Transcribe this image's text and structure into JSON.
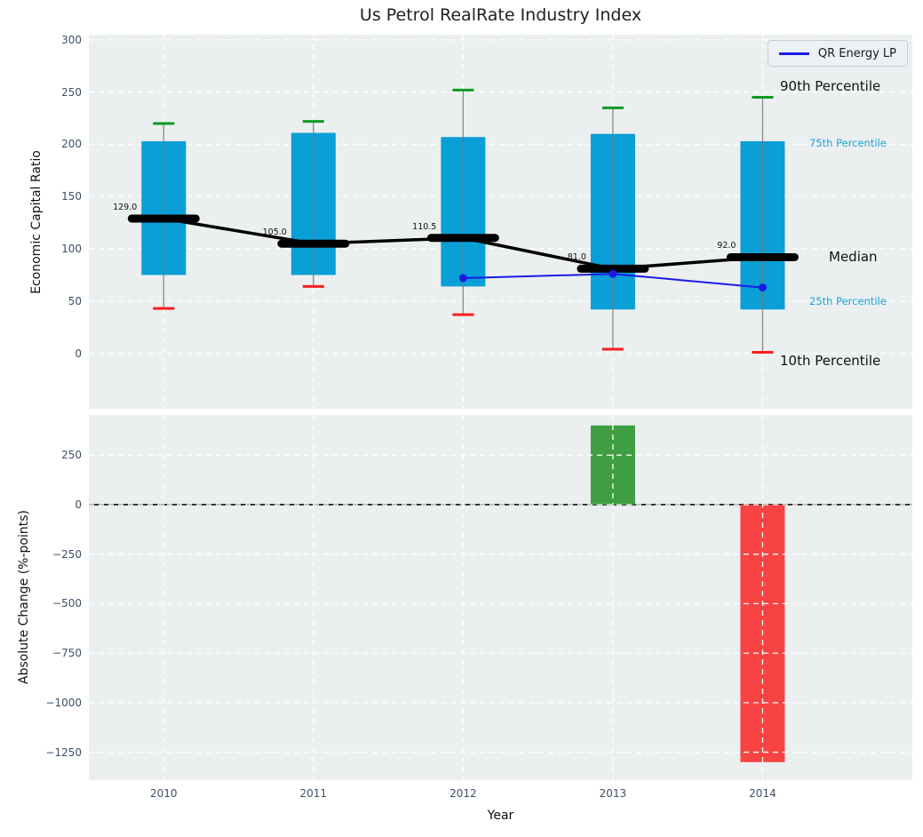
{
  "title": "Us Petrol RealRate Industry Index",
  "legend": {
    "label": "QR Energy LP"
  },
  "colors": {
    "axes_bg": "#ebeff0",
    "grid": "#ffffff",
    "tick": "#3d4f66",
    "box_fill": "#0a9fd6",
    "accent_label": "#17a2d4",
    "whisker": "#777777",
    "cap_high": "#0c9a26",
    "cap_low": "#f81e1e",
    "median": "#000000",
    "qr_line": "#1a1ae6",
    "bar_positive": "#3f9e42",
    "bar_negative": "#f84343",
    "zero_line": "#111111",
    "title_color": "#212121"
  },
  "chart_data": [
    {
      "type": "box-percentile",
      "title": "Us Petrol RealRate Industry Index",
      "ylabel": "Economic Capital Ratio",
      "categories": [
        "2010",
        "2011",
        "2012",
        "2013",
        "2014"
      ],
      "ylim": [
        -53,
        305
      ],
      "yticks": [
        300,
        250,
        200,
        150,
        100,
        50,
        0
      ],
      "ytick_labels": [
        "300",
        "250",
        "200",
        "150",
        "100",
        "50",
        "0"
      ],
      "grid": true,
      "legend_position": "upper right",
      "series": [
        {
          "name": "90th Percentile",
          "values": [
            220,
            222,
            252,
            235,
            245
          ]
        },
        {
          "name": "75th Percentile",
          "values": [
            203,
            211,
            207,
            210,
            203
          ]
        },
        {
          "name": "Median",
          "values": [
            129.0,
            105.0,
            110.5,
            81.0,
            92.0
          ]
        },
        {
          "name": "25th Percentile",
          "values": [
            75,
            75,
            64,
            42,
            42
          ]
        },
        {
          "name": "10th Percentile",
          "values": [
            43,
            64,
            37,
            4,
            1
          ]
        }
      ],
      "median_labels": [
        "129.0",
        "105.0",
        "110.5",
        "81.0",
        "92.0"
      ],
      "overlay_line": {
        "name": "QR Energy LP",
        "x_indices": [
          2,
          3,
          4
        ],
        "x_labels": [
          "2012",
          "2013",
          "2014"
        ],
        "values": [
          72,
          76,
          63
        ]
      },
      "right_labels": [
        {
          "text": "90th Percentile",
          "style": "black",
          "x": 878,
          "value": 254
        },
        {
          "text": "75th Percentile",
          "style": "accent",
          "x": 911,
          "value": 200
        },
        {
          "text": "Median",
          "style": "black",
          "x": 933,
          "value": 91
        },
        {
          "text": "25th Percentile",
          "style": "accent",
          "x": 911,
          "value": 49
        },
        {
          "text": "10th Percentile",
          "style": "black",
          "x": 878,
          "value": -9
        }
      ]
    },
    {
      "type": "bar",
      "ylabel": "Absolute Change (%-points)",
      "xlabel": "Year",
      "categories": [
        "2010",
        "2011",
        "2012",
        "2013",
        "2014"
      ],
      "values": [
        null,
        null,
        null,
        400,
        -1300
      ],
      "ylim": [
        -1391,
        453
      ],
      "yticks": [
        250,
        0,
        -250,
        -500,
        -750,
        -1000,
        -1250
      ],
      "ytick_labels": [
        "250",
        "0",
        "−250",
        "−500",
        "−750",
        "−1000",
        "−1250"
      ],
      "zero_line": true,
      "grid": true
    }
  ]
}
